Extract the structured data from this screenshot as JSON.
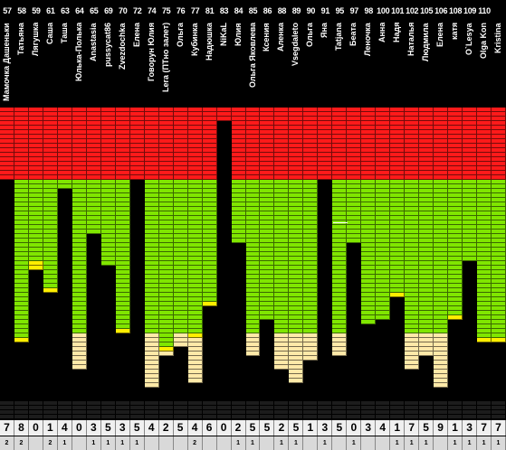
{
  "colors": {
    "red": "#ff1a1a",
    "green": "#80e600",
    "yellow": "#ffee00",
    "cream": "#ffe9a8",
    "background": "#000000",
    "score_bg": "#f0f0f0"
  },
  "columns": [
    {
      "num": "57",
      "name": "Мамочка Дашеньки",
      "score": "7",
      "sub": "2",
      "red": 16,
      "green": 0,
      "yellow": 0,
      "cream": 0
    },
    {
      "num": "58",
      "name": "Татьяна",
      "score": "8",
      "sub": "2",
      "red": 16,
      "green": 35,
      "yellow": 1,
      "cream": 0
    },
    {
      "num": "59",
      "name": "Лягушка",
      "score": "0",
      "sub": "",
      "red": 16,
      "green": 18,
      "yellow": 2,
      "cream": 0
    },
    {
      "num": "61",
      "name": "Саша",
      "score": "1",
      "sub": "2",
      "red": 16,
      "green": 24,
      "yellow": 1,
      "cream": 0
    },
    {
      "num": "63",
      "name": "Таша",
      "score": "4",
      "sub": "1",
      "red": 16,
      "green": 2,
      "yellow": 0,
      "cream": 0
    },
    {
      "num": "64",
      "name": "Юлька-Полька",
      "score": "0",
      "sub": "",
      "red": 16,
      "green": 34,
      "yellow": 0,
      "cream": 8
    },
    {
      "num": "65",
      "name": "Anastasia",
      "score": "3",
      "sub": "1",
      "red": 16,
      "green": 12,
      "yellow": 0,
      "cream": 0
    },
    {
      "num": "69",
      "name": "pussycat86",
      "score": "5",
      "sub": "1",
      "red": 16,
      "green": 19,
      "yellow": 0,
      "cream": 0
    },
    {
      "num": "70",
      "name": "Zvezdochka",
      "score": "3",
      "sub": "1",
      "red": 16,
      "green": 33,
      "yellow": 1,
      "cream": 0
    },
    {
      "num": "72",
      "name": "Елена",
      "score": "5",
      "sub": "1",
      "red": 16,
      "green": 0,
      "yellow": 0,
      "cream": 0
    },
    {
      "num": "74",
      "name": "Говорун Юлия",
      "score": "4",
      "sub": "",
      "red": 16,
      "green": 34,
      "yellow": 0,
      "cream": 12
    },
    {
      "num": "75",
      "name": "Lera (ПТно залет)",
      "score": "2",
      "sub": "",
      "red": 16,
      "green": 37,
      "yellow": 1,
      "cream": 1
    },
    {
      "num": "76",
      "name": "Ольга",
      "score": "5",
      "sub": "",
      "red": 16,
      "green": 34,
      "yellow": 0,
      "cream": 3
    },
    {
      "num": "77",
      "name": "Кубинка",
      "score": "4",
      "sub": "2",
      "red": 16,
      "green": 34,
      "yellow": 1,
      "cream": 10
    },
    {
      "num": "81",
      "name": "Надюшка",
      "score": "6",
      "sub": "",
      "red": 16,
      "green": 27,
      "yellow": 1,
      "cream": 0
    },
    {
      "num": "83",
      "name": "NiKaL",
      "score": "0",
      "sub": "",
      "red": 3,
      "green": 0,
      "yellow": 0,
      "cream": 0
    },
    {
      "num": "84",
      "name": "Юлия",
      "score": "2",
      "sub": "1",
      "red": 16,
      "green": 14,
      "yellow": 0,
      "cream": 0
    },
    {
      "num": "85",
      "name": "Ольга Яковлева",
      "score": "5",
      "sub": "1",
      "red": 16,
      "green": 34,
      "yellow": 0,
      "cream": 5
    },
    {
      "num": "86",
      "name": "Ксения",
      "score": "5",
      "sub": "",
      "red": 16,
      "green": 31,
      "yellow": 0,
      "cream": 0
    },
    {
      "num": "88",
      "name": "Аленка",
      "score": "2",
      "sub": "1",
      "red": 16,
      "green": 34,
      "yellow": 0,
      "cream": 8
    },
    {
      "num": "89",
      "name": "Vsegdaleto",
      "score": "5",
      "sub": "1",
      "red": 16,
      "green": 34,
      "yellow": 0,
      "cream": 11
    },
    {
      "num": "90",
      "name": "Ольга",
      "score": "1",
      "sub": "",
      "red": 16,
      "green": 34,
      "yellow": 0,
      "cream": 6
    },
    {
      "num": "91",
      "name": "Яна",
      "score": "3",
      "sub": "1",
      "red": 16,
      "green": 0,
      "yellow": 0,
      "cream": 0
    },
    {
      "num": "95",
      "name": "Tatjana",
      "score": "5",
      "sub": "",
      "red": 16,
      "green": 34,
      "yellow": 0,
      "cream": 5
    },
    {
      "num": "97",
      "name": "Беата",
      "score": "0",
      "sub": "1",
      "red": 16,
      "green": 14,
      "yellow": 0,
      "cream": 0
    },
    {
      "num": "98",
      "name": "Леночка",
      "score": "3",
      "sub": "",
      "red": 16,
      "green": 32,
      "yellow": 0,
      "cream": 0
    },
    {
      "num": "100",
      "name": "Анна",
      "score": "4",
      "sub": "",
      "red": 16,
      "green": 31,
      "yellow": 0,
      "cream": 0
    },
    {
      "num": "101",
      "name": "Надя",
      "score": "1",
      "sub": "1",
      "red": 16,
      "green": 25,
      "yellow": 1,
      "cream": 0
    },
    {
      "num": "102",
      "name": "Наталья",
      "score": "7",
      "sub": "1",
      "red": 16,
      "green": 34,
      "yellow": 0,
      "cream": 8
    },
    {
      "num": "105",
      "name": "Людмила",
      "score": "5",
      "sub": "1",
      "red": 16,
      "green": 34,
      "yellow": 0,
      "cream": 5
    },
    {
      "num": "106",
      "name": "Елена",
      "score": "9",
      "sub": "",
      "red": 16,
      "green": 34,
      "yellow": 0,
      "cream": 12
    },
    {
      "num": "108",
      "name": "катя",
      "score": "1",
      "sub": "1",
      "red": 16,
      "green": 30,
      "yellow": 1,
      "cream": 0
    },
    {
      "num": "109",
      "name": "O`Lesya",
      "score": "3",
      "sub": "1",
      "red": 16,
      "green": 18,
      "yellow": 0,
      "cream": 0
    },
    {
      "num": "110",
      "name": "Olga Kon",
      "score": "7",
      "sub": "1",
      "red": 16,
      "green": 35,
      "yellow": 1,
      "cream": 0
    }
  ],
  "last_column": {
    "num": "",
    "name": "Kristina",
    "score": "7",
    "sub": "1"
  }
}
